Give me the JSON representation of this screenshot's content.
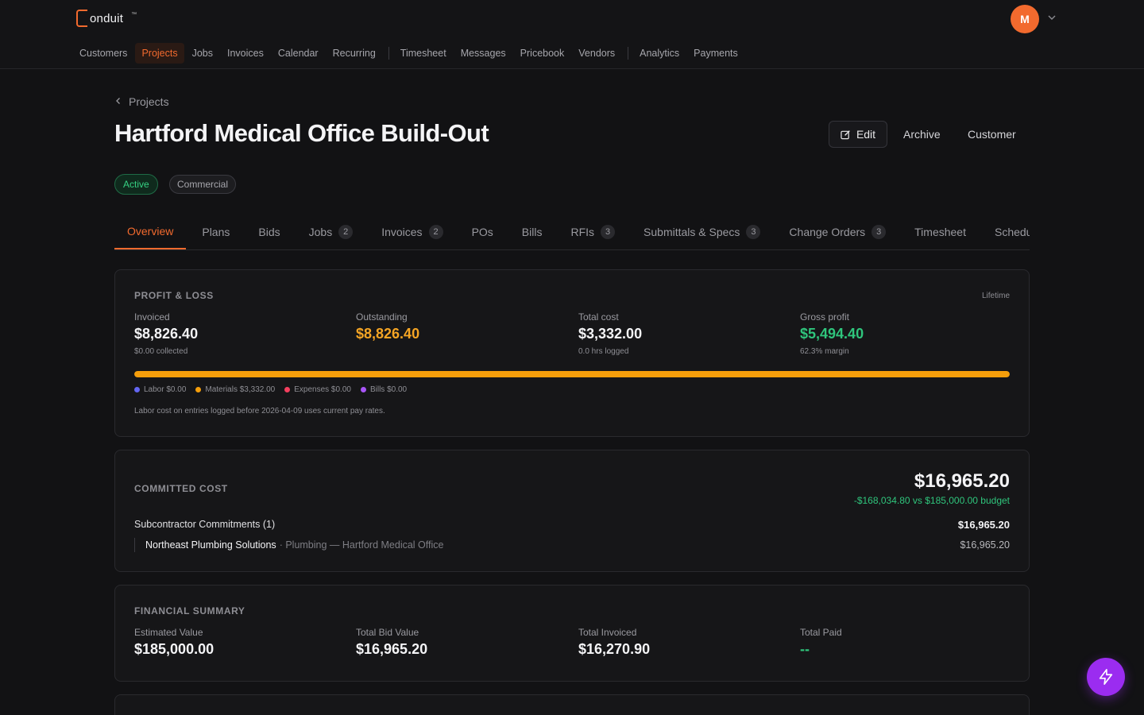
{
  "app": {
    "logo_text": "onduit",
    "logo_tm": "™",
    "avatar_initial": "M",
    "accent": "#f26a2e"
  },
  "nav": {
    "items": [
      "Customers",
      "Projects",
      "Jobs",
      "Invoices",
      "Calendar",
      "Recurring",
      "Timesheet",
      "Messages",
      "Pricebook",
      "Vendors",
      "Analytics",
      "Payments"
    ],
    "active": "Projects"
  },
  "page": {
    "breadcrumb": "Projects",
    "title": "Hartford Medical Office Build-Out",
    "actions": {
      "edit": "Edit",
      "archive": "Archive",
      "customer": "Customer"
    },
    "badges": {
      "status": "Active",
      "type": "Commercial"
    }
  },
  "tabs": [
    {
      "label": "Overview",
      "count": ""
    },
    {
      "label": "Plans",
      "count": ""
    },
    {
      "label": "Bids",
      "count": ""
    },
    {
      "label": "Jobs",
      "count": "2"
    },
    {
      "label": "Invoices",
      "count": "2"
    },
    {
      "label": "POs",
      "count": ""
    },
    {
      "label": "Bills",
      "count": ""
    },
    {
      "label": "RFIs",
      "count": "3"
    },
    {
      "label": "Submittals & Specs",
      "count": "3"
    },
    {
      "label": "Change Orders",
      "count": "3"
    },
    {
      "label": "Timesheet",
      "count": ""
    },
    {
      "label": "Schedule",
      "count": ""
    }
  ],
  "profit_loss": {
    "label": "PROFIT & LOSS",
    "period": "Lifetime",
    "invoiced": {
      "label": "Invoiced",
      "value": "$8,826.40",
      "sub": "$0.00 collected"
    },
    "outstanding": {
      "label": "Outstanding",
      "value": "$8,826.40"
    },
    "total_cost": {
      "label": "Total cost",
      "value": "$3,332.00",
      "sub": "0.0 hrs logged"
    },
    "gross_profit": {
      "label": "Gross profit",
      "value": "$5,494.40",
      "sub": "62.3% margin"
    },
    "bar_fill_percent": 100,
    "legend": [
      {
        "label": "Labor $0.00",
        "color": "#6366f1"
      },
      {
        "label": "Materials $3,332.00",
        "color": "#f59e0b"
      },
      {
        "label": "Expenses $0.00",
        "color": "#f43f5e"
      },
      {
        "label": "Bills $0.00",
        "color": "#a855f7"
      }
    ],
    "note": "Labor cost on entries logged before 2026-04-09 uses current pay rates."
  },
  "committed_cost": {
    "label": "COMMITTED COST",
    "total": "$16,965.20",
    "budget_delta": "-$168,034.80 vs $185,000.00 budget",
    "group_title": "Subcontractor Commitments (1)",
    "group_amount": "$16,965.20",
    "item_vendor": "Northeast Plumbing Solutions",
    "item_desc": "· Plumbing — Hartford Medical Office",
    "item_amount": "$16,965.20"
  },
  "financial_summary": {
    "label": "FINANCIAL SUMMARY",
    "estimated": {
      "label": "Estimated Value",
      "value": "$185,000.00"
    },
    "bid": {
      "label": "Total Bid Value",
      "value": "$16,965.20"
    },
    "invoiced": {
      "label": "Total Invoiced",
      "value": "$16,270.90"
    },
    "paid": {
      "label": "Total Paid",
      "value": "--"
    }
  }
}
